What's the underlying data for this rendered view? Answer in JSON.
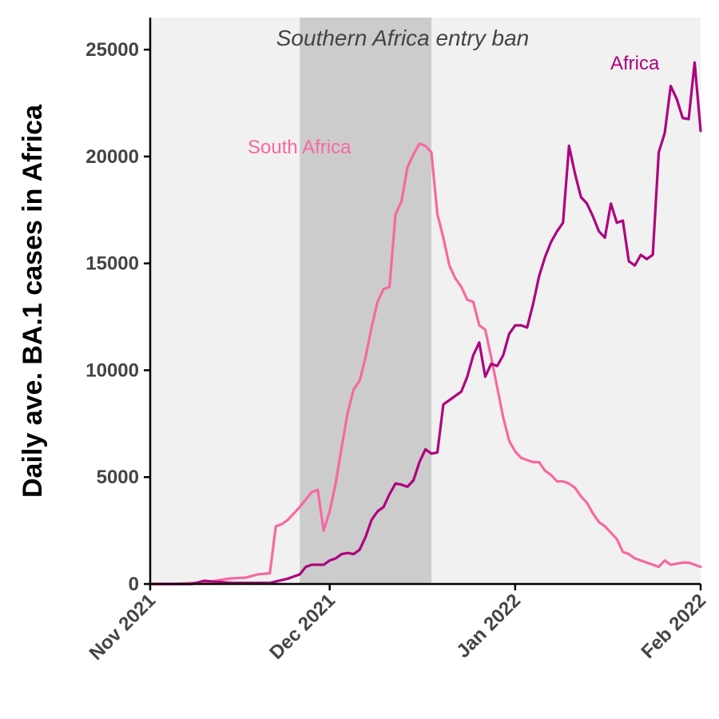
{
  "chart_data": {
    "type": "line",
    "ylabel": "Daily ave. BA.1 cases in Africa",
    "xlim": [
      "2021-11-01",
      "2022-02-01"
    ],
    "ylim": [
      0,
      26500
    ],
    "y_ticks": [
      0,
      5000,
      10000,
      15000,
      20000,
      25000
    ],
    "y_tick_labels": [
      "0",
      "5000",
      "10000",
      "15000",
      "20000",
      "25000"
    ],
    "x_ticks": [
      "2021-11-01",
      "2021-12-01",
      "2022-01-01",
      "2022-02-01"
    ],
    "x_tick_labels": [
      "Nov 2021",
      "Dec 2021",
      "Jan 2022",
      "Feb 2022"
    ],
    "grid": false,
    "background_color": "#f1f1f1",
    "shaded_region": {
      "start": "2021-11-26",
      "end": "2021-12-18",
      "label": "Southern Africa entry ban",
      "color": "#cccccc"
    },
    "series": [
      {
        "name": "South Africa",
        "color": "#f768a1",
        "points": [
          [
            "2021-11-01",
            0
          ],
          [
            "2021-11-05",
            0
          ],
          [
            "2021-11-08",
            50
          ],
          [
            "2021-11-11",
            100
          ],
          [
            "2021-11-14",
            250
          ],
          [
            "2021-11-17",
            300
          ],
          [
            "2021-11-19",
            450
          ],
          [
            "2021-11-21",
            500
          ],
          [
            "2021-11-22",
            2700
          ],
          [
            "2021-11-23",
            2800
          ],
          [
            "2021-11-24",
            3000
          ],
          [
            "2021-11-25",
            3300
          ],
          [
            "2021-11-26",
            3600
          ],
          [
            "2021-11-28",
            4300
          ],
          [
            "2021-11-29",
            4400
          ],
          [
            "2021-11-30",
            2500
          ],
          [
            "2021-12-01",
            3400
          ],
          [
            "2021-12-02",
            4700
          ],
          [
            "2021-12-03",
            6400
          ],
          [
            "2021-12-04",
            8000
          ],
          [
            "2021-12-05",
            9100
          ],
          [
            "2021-12-06",
            9500
          ],
          [
            "2021-12-07",
            10600
          ],
          [
            "2021-12-08",
            12000
          ],
          [
            "2021-12-09",
            13200
          ],
          [
            "2021-12-10",
            13800
          ],
          [
            "2021-12-11",
            13900
          ],
          [
            "2021-12-12",
            17300
          ],
          [
            "2021-12-13",
            17900
          ],
          [
            "2021-12-14",
            19500
          ],
          [
            "2021-12-15",
            20100
          ],
          [
            "2021-12-16",
            20600
          ],
          [
            "2021-12-17",
            20500
          ],
          [
            "2021-12-18",
            20200
          ],
          [
            "2021-12-19",
            17300
          ],
          [
            "2021-12-20",
            16200
          ],
          [
            "2021-12-21",
            14900
          ],
          [
            "2021-12-22",
            14300
          ],
          [
            "2021-12-23",
            13900
          ],
          [
            "2021-12-24",
            13300
          ],
          [
            "2021-12-25",
            13200
          ],
          [
            "2021-12-26",
            12100
          ],
          [
            "2021-12-27",
            11900
          ],
          [
            "2021-12-28",
            10600
          ],
          [
            "2021-12-29",
            9200
          ],
          [
            "2021-12-30",
            7800
          ],
          [
            "2021-12-31",
            6700
          ],
          [
            "2022-01-01",
            6200
          ],
          [
            "2022-01-02",
            5900
          ],
          [
            "2022-01-03",
            5800
          ],
          [
            "2022-01-04",
            5700
          ],
          [
            "2022-01-05",
            5700
          ],
          [
            "2022-01-06",
            5300
          ],
          [
            "2022-01-07",
            5100
          ],
          [
            "2022-01-08",
            4800
          ],
          [
            "2022-01-09",
            4800
          ],
          [
            "2022-01-10",
            4700
          ],
          [
            "2022-01-11",
            4500
          ],
          [
            "2022-01-12",
            4100
          ],
          [
            "2022-01-13",
            3800
          ],
          [
            "2022-01-14",
            3300
          ],
          [
            "2022-01-15",
            2900
          ],
          [
            "2022-01-16",
            2700
          ],
          [
            "2022-01-17",
            2400
          ],
          [
            "2022-01-18",
            2100
          ],
          [
            "2022-01-19",
            1500
          ],
          [
            "2022-01-20",
            1400
          ],
          [
            "2022-01-21",
            1200
          ],
          [
            "2022-01-22",
            1100
          ],
          [
            "2022-01-23",
            1000
          ],
          [
            "2022-01-24",
            900
          ],
          [
            "2022-01-25",
            800
          ],
          [
            "2022-01-26",
            1100
          ],
          [
            "2022-01-27",
            900
          ],
          [
            "2022-01-28",
            950
          ],
          [
            "2022-01-29",
            1000
          ],
          [
            "2022-01-30",
            1000
          ],
          [
            "2022-01-31",
            900
          ],
          [
            "2022-02-01",
            800
          ]
        ]
      },
      {
        "name": "Africa",
        "color": "#ae017e",
        "points": [
          [
            "2021-11-01",
            0
          ],
          [
            "2021-11-08",
            0
          ],
          [
            "2021-11-10",
            150
          ],
          [
            "2021-11-12",
            100
          ],
          [
            "2021-11-15",
            50
          ],
          [
            "2021-11-18",
            50
          ],
          [
            "2021-11-21",
            50
          ],
          [
            "2021-11-24",
            250
          ],
          [
            "2021-11-25",
            350
          ],
          [
            "2021-11-26",
            450
          ],
          [
            "2021-11-27",
            800
          ],
          [
            "2021-11-28",
            900
          ],
          [
            "2021-11-30",
            900
          ],
          [
            "2021-12-01",
            1100
          ],
          [
            "2021-12-02",
            1200
          ],
          [
            "2021-12-03",
            1400
          ],
          [
            "2021-12-04",
            1450
          ],
          [
            "2021-12-05",
            1400
          ],
          [
            "2021-12-06",
            1600
          ],
          [
            "2021-12-07",
            2200
          ],
          [
            "2021-12-08",
            3000
          ],
          [
            "2021-12-09",
            3400
          ],
          [
            "2021-12-10",
            3600
          ],
          [
            "2021-12-11",
            4200
          ],
          [
            "2021-12-12",
            4700
          ],
          [
            "2021-12-13",
            4650
          ],
          [
            "2021-12-14",
            4550
          ],
          [
            "2021-12-15",
            4850
          ],
          [
            "2021-12-16",
            5700
          ],
          [
            "2021-12-17",
            6300
          ],
          [
            "2021-12-18",
            6100
          ],
          [
            "2021-12-19",
            6150
          ],
          [
            "2021-12-20",
            8400
          ],
          [
            "2021-12-21",
            8600
          ],
          [
            "2021-12-22",
            8800
          ],
          [
            "2021-12-23",
            9000
          ],
          [
            "2021-12-24",
            9700
          ],
          [
            "2021-12-25",
            10700
          ],
          [
            "2021-12-26",
            11300
          ],
          [
            "2021-12-27",
            9700
          ],
          [
            "2021-12-28",
            10300
          ],
          [
            "2021-12-29",
            10200
          ],
          [
            "2021-12-30",
            10700
          ],
          [
            "2021-12-31",
            11700
          ],
          [
            "2022-01-01",
            12100
          ],
          [
            "2022-01-02",
            12100
          ],
          [
            "2022-01-03",
            12000
          ],
          [
            "2022-01-04",
            13100
          ],
          [
            "2022-01-05",
            14400
          ],
          [
            "2022-01-06",
            15300
          ],
          [
            "2022-01-07",
            16000
          ],
          [
            "2022-01-08",
            16500
          ],
          [
            "2022-01-09",
            16900
          ],
          [
            "2022-01-10",
            20500
          ],
          [
            "2022-01-11",
            19200
          ],
          [
            "2022-01-12",
            18100
          ],
          [
            "2022-01-13",
            17800
          ],
          [
            "2022-01-14",
            17200
          ],
          [
            "2022-01-15",
            16500
          ],
          [
            "2022-01-16",
            16200
          ],
          [
            "2022-01-17",
            17800
          ],
          [
            "2022-01-18",
            16900
          ],
          [
            "2022-01-19",
            17000
          ],
          [
            "2022-01-20",
            15100
          ],
          [
            "2022-01-21",
            14900
          ],
          [
            "2022-01-22",
            15400
          ],
          [
            "2022-01-23",
            15200
          ],
          [
            "2022-01-24",
            15400
          ],
          [
            "2022-01-25",
            20200
          ],
          [
            "2022-01-26",
            21100
          ],
          [
            "2022-01-27",
            23300
          ],
          [
            "2022-01-28",
            22700
          ],
          [
            "2022-01-29",
            21800
          ],
          [
            "2022-01-30",
            21750
          ],
          [
            "2022-01-31",
            24400
          ],
          [
            "2022-02-01",
            21200
          ]
        ]
      }
    ]
  }
}
